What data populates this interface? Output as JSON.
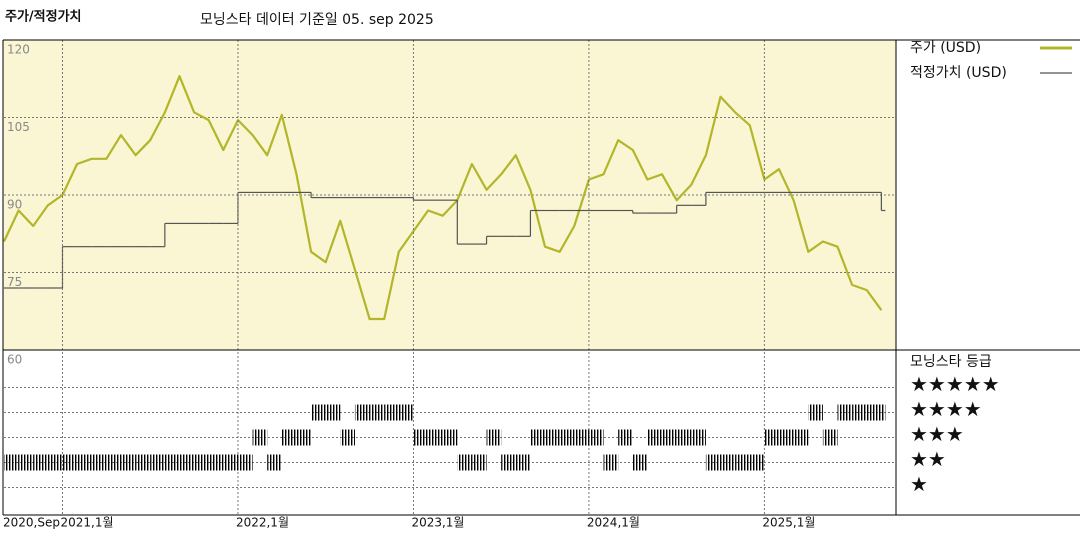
{
  "chart_data": [
    {
      "type": "line",
      "title": "주가/적정가치",
      "subtitle": "모닝스타 데이터 기준일 05. sep 2025",
      "x": [
        "2020-09",
        "2020-10",
        "2020-11",
        "2020-12",
        "2021-01",
        "2021-02",
        "2021-03",
        "2021-04",
        "2021-05",
        "2021-06",
        "2021-07",
        "2021-08",
        "2021-09",
        "2021-10",
        "2021-11",
        "2021-12",
        "2022-01",
        "2022-02",
        "2022-03",
        "2022-04",
        "2022-05",
        "2022-06",
        "2022-07",
        "2022-08",
        "2022-09",
        "2022-10",
        "2022-11",
        "2022-12",
        "2023-01",
        "2023-02",
        "2023-03",
        "2023-04",
        "2023-05",
        "2023-06",
        "2023-07",
        "2023-08",
        "2023-09",
        "2023-10",
        "2023-11",
        "2023-12",
        "2024-01",
        "2024-02",
        "2024-03",
        "2024-04",
        "2024-05",
        "2024-06",
        "2024-07",
        "2024-08",
        "2024-09",
        "2024-10",
        "2024-11",
        "2024-12",
        "2025-01",
        "2025-02",
        "2025-03",
        "2025-04",
        "2025-05",
        "2025-06",
        "2025-07",
        "2025-08",
        "2025-09"
      ],
      "xlim": [
        "2020-09",
        "2025-10"
      ],
      "ylim": [
        60,
        120
      ],
      "yticks": [
        60,
        75,
        90,
        105,
        120
      ],
      "grid": true,
      "background": "#faf6d3",
      "series": [
        {
          "name": "주가 (USD)",
          "color": "#b3b52a",
          "values": [
            81,
            87,
            84,
            88,
            90,
            96,
            97,
            97,
            101.6,
            97.7,
            100.6,
            106,
            113,
            106,
            104.5,
            98.7,
            104.5,
            101.6,
            97.7,
            105.5,
            94,
            79,
            77,
            85,
            75.5,
            66,
            66,
            79,
            83,
            87,
            86,
            89,
            96,
            91,
            94,
            97.7,
            91,
            80,
            79,
            84,
            93,
            94,
            100.6,
            98.7,
            93,
            94,
            89,
            92,
            97.7,
            109,
            106,
            103.5,
            93,
            95,
            89,
            79,
            81,
            80,
            72.6,
            71.6,
            67.7
          ]
        },
        {
          "name": "적정가치 (USD)",
          "color": "#555555",
          "step": true,
          "values": [
            72,
            72,
            72,
            72,
            80,
            80,
            80,
            80,
            80,
            80,
            80,
            84.5,
            84.5,
            84.5,
            84.5,
            84.5,
            90.5,
            90.5,
            90.5,
            90.5,
            90.5,
            89.5,
            89.5,
            89.5,
            89.5,
            89.5,
            89.5,
            89.5,
            89,
            89,
            89,
            80.5,
            80.5,
            82,
            82,
            82,
            87,
            87,
            87,
            87,
            87,
            87,
            87,
            86.5,
            86.5,
            86.5,
            88,
            88,
            90.5,
            90.5,
            90.5,
            90.5,
            90.5,
            90.5,
            90.5,
            90.5,
            90.5,
            90.5,
            90.5,
            90.5,
            87
          ]
        }
      ]
    },
    {
      "type": "rating",
      "title": "모닝스타 등급",
      "x": [
        "2020-09",
        "2020-10",
        "2020-11",
        "2020-12",
        "2021-01",
        "2021-02",
        "2021-03",
        "2021-04",
        "2021-05",
        "2021-06",
        "2021-07",
        "2021-08",
        "2021-09",
        "2021-10",
        "2021-11",
        "2021-12",
        "2022-01",
        "2022-02",
        "2022-03",
        "2022-04",
        "2022-05",
        "2022-06",
        "2022-07",
        "2022-08",
        "2022-09",
        "2022-10",
        "2022-11",
        "2022-12",
        "2023-01",
        "2023-02",
        "2023-03",
        "2023-04",
        "2023-05",
        "2023-06",
        "2023-07",
        "2023-08",
        "2023-09",
        "2023-10",
        "2023-11",
        "2023-12",
        "2024-01",
        "2024-02",
        "2024-03",
        "2024-04",
        "2024-05",
        "2024-06",
        "2024-07",
        "2024-08",
        "2024-09",
        "2024-10",
        "2024-11",
        "2024-12",
        "2025-01",
        "2025-02",
        "2025-03",
        "2025-04",
        "2025-05",
        "2025-06",
        "2025-07",
        "2025-08",
        "2025-09"
      ],
      "values": [
        2,
        2,
        2,
        2,
        2,
        2,
        2,
        2,
        2,
        2,
        2,
        2,
        2,
        2,
        2,
        2,
        2,
        3,
        2,
        3,
        3,
        4,
        4,
        3,
        4,
        4,
        4,
        4,
        3,
        3,
        3,
        2,
        2,
        3,
        2,
        2,
        3,
        3,
        3,
        3,
        3,
        2,
        3,
        2,
        3,
        3,
        3,
        3,
        2,
        2,
        2,
        2,
        3,
        3,
        3,
        4,
        3,
        4,
        4,
        4,
        4
      ],
      "xlim": [
        "2020-09",
        "2025-10"
      ],
      "xticks": [
        {
          "value": "2020-09",
          "label": "2020,Sep"
        },
        {
          "value": "2021-01",
          "label": "2021,1월"
        },
        {
          "value": "2022-01",
          "label": "2022,1월"
        },
        {
          "value": "2023-01",
          "label": "2023,1월"
        },
        {
          "value": "2024-01",
          "label": "2024,1월"
        },
        {
          "value": "2025-01",
          "label": "2025,1월"
        }
      ],
      "ylim": [
        0.5,
        6.5
      ],
      "yticks": [
        {
          "value": 5,
          "label": "★★★★★"
        },
        {
          "value": 4,
          "label": "★★★★"
        },
        {
          "value": 3,
          "label": "★★★"
        },
        {
          "value": 2,
          "label": "★★"
        },
        {
          "value": 1,
          "label": "★"
        }
      ],
      "color": "#000000"
    }
  ]
}
